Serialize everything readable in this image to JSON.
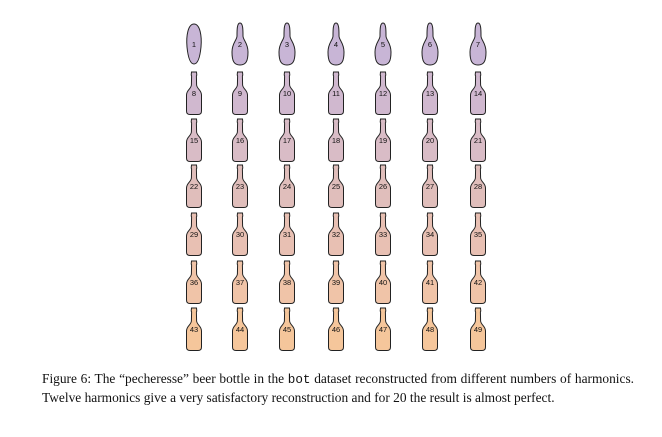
{
  "figure": {
    "columns": 7,
    "rows": 7,
    "labels": [
      "1",
      "2",
      "3",
      "4",
      "5",
      "6",
      "7",
      "8",
      "9",
      "10",
      "11",
      "12",
      "13",
      "14",
      "15",
      "16",
      "17",
      "18",
      "19",
      "20",
      "21",
      "22",
      "23",
      "24",
      "25",
      "26",
      "27",
      "28",
      "29",
      "30",
      "31",
      "32",
      "33",
      "34",
      "35",
      "36",
      "37",
      "38",
      "39",
      "40",
      "41",
      "42",
      "43",
      "44",
      "45",
      "46",
      "47",
      "48",
      "49"
    ],
    "row_colors": [
      "#c8b5d6",
      "#d0b8cf",
      "#d9bcc6",
      "#e0bebb",
      "#e8c0b3",
      "#f0c4a8",
      "#f5c69b"
    ],
    "outline_color": "#222222"
  },
  "caption": {
    "prefix": "Figure 6: The “pecheresse” beer bottle in the ",
    "code": "bot",
    "suffix": " dataset reconstructed from different numbers of harmonics. Twelve harmonics give a very satisfactory reconstruction and for 20 the result is almost perfect."
  }
}
